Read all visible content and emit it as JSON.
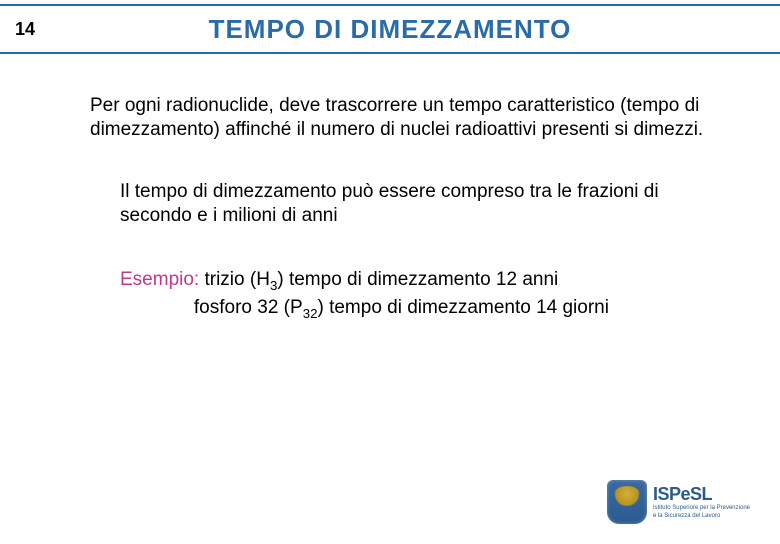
{
  "page_number": "14",
  "title": "TEMPO DI DIMEZZAMENTO",
  "para1": "Per ogni radionuclide, deve trascorrere un tempo caratteristico (tempo di dimezzamento) affinché il numero di nuclei radioattivi presenti si dimezzi.",
  "para2": "Il tempo di dimezzamento può essere compreso tra le frazioni di secondo e i milioni di anni",
  "example_label": "Esempio:",
  "example_line1_a": " trizio (H",
  "example_sub1": "3",
  "example_line1_b": ") tempo di dimezzamento 12 anni",
  "example_line2_a": "fosforo 32 (P",
  "example_sub2": "32",
  "example_line2_b": ") tempo di dimezzamento 14 giorni",
  "logo_brand": "ISPeSL",
  "logo_sub1": "Istituto Superiore per la Prevenzione",
  "logo_sub2": "e la Sicurezza del Lavoro",
  "colors": {
    "header_border": "#2a6ba8",
    "title_color": "#2a6ba8",
    "label_color": "#c03a8a",
    "text_color": "#000000",
    "background": "#ffffff"
  }
}
